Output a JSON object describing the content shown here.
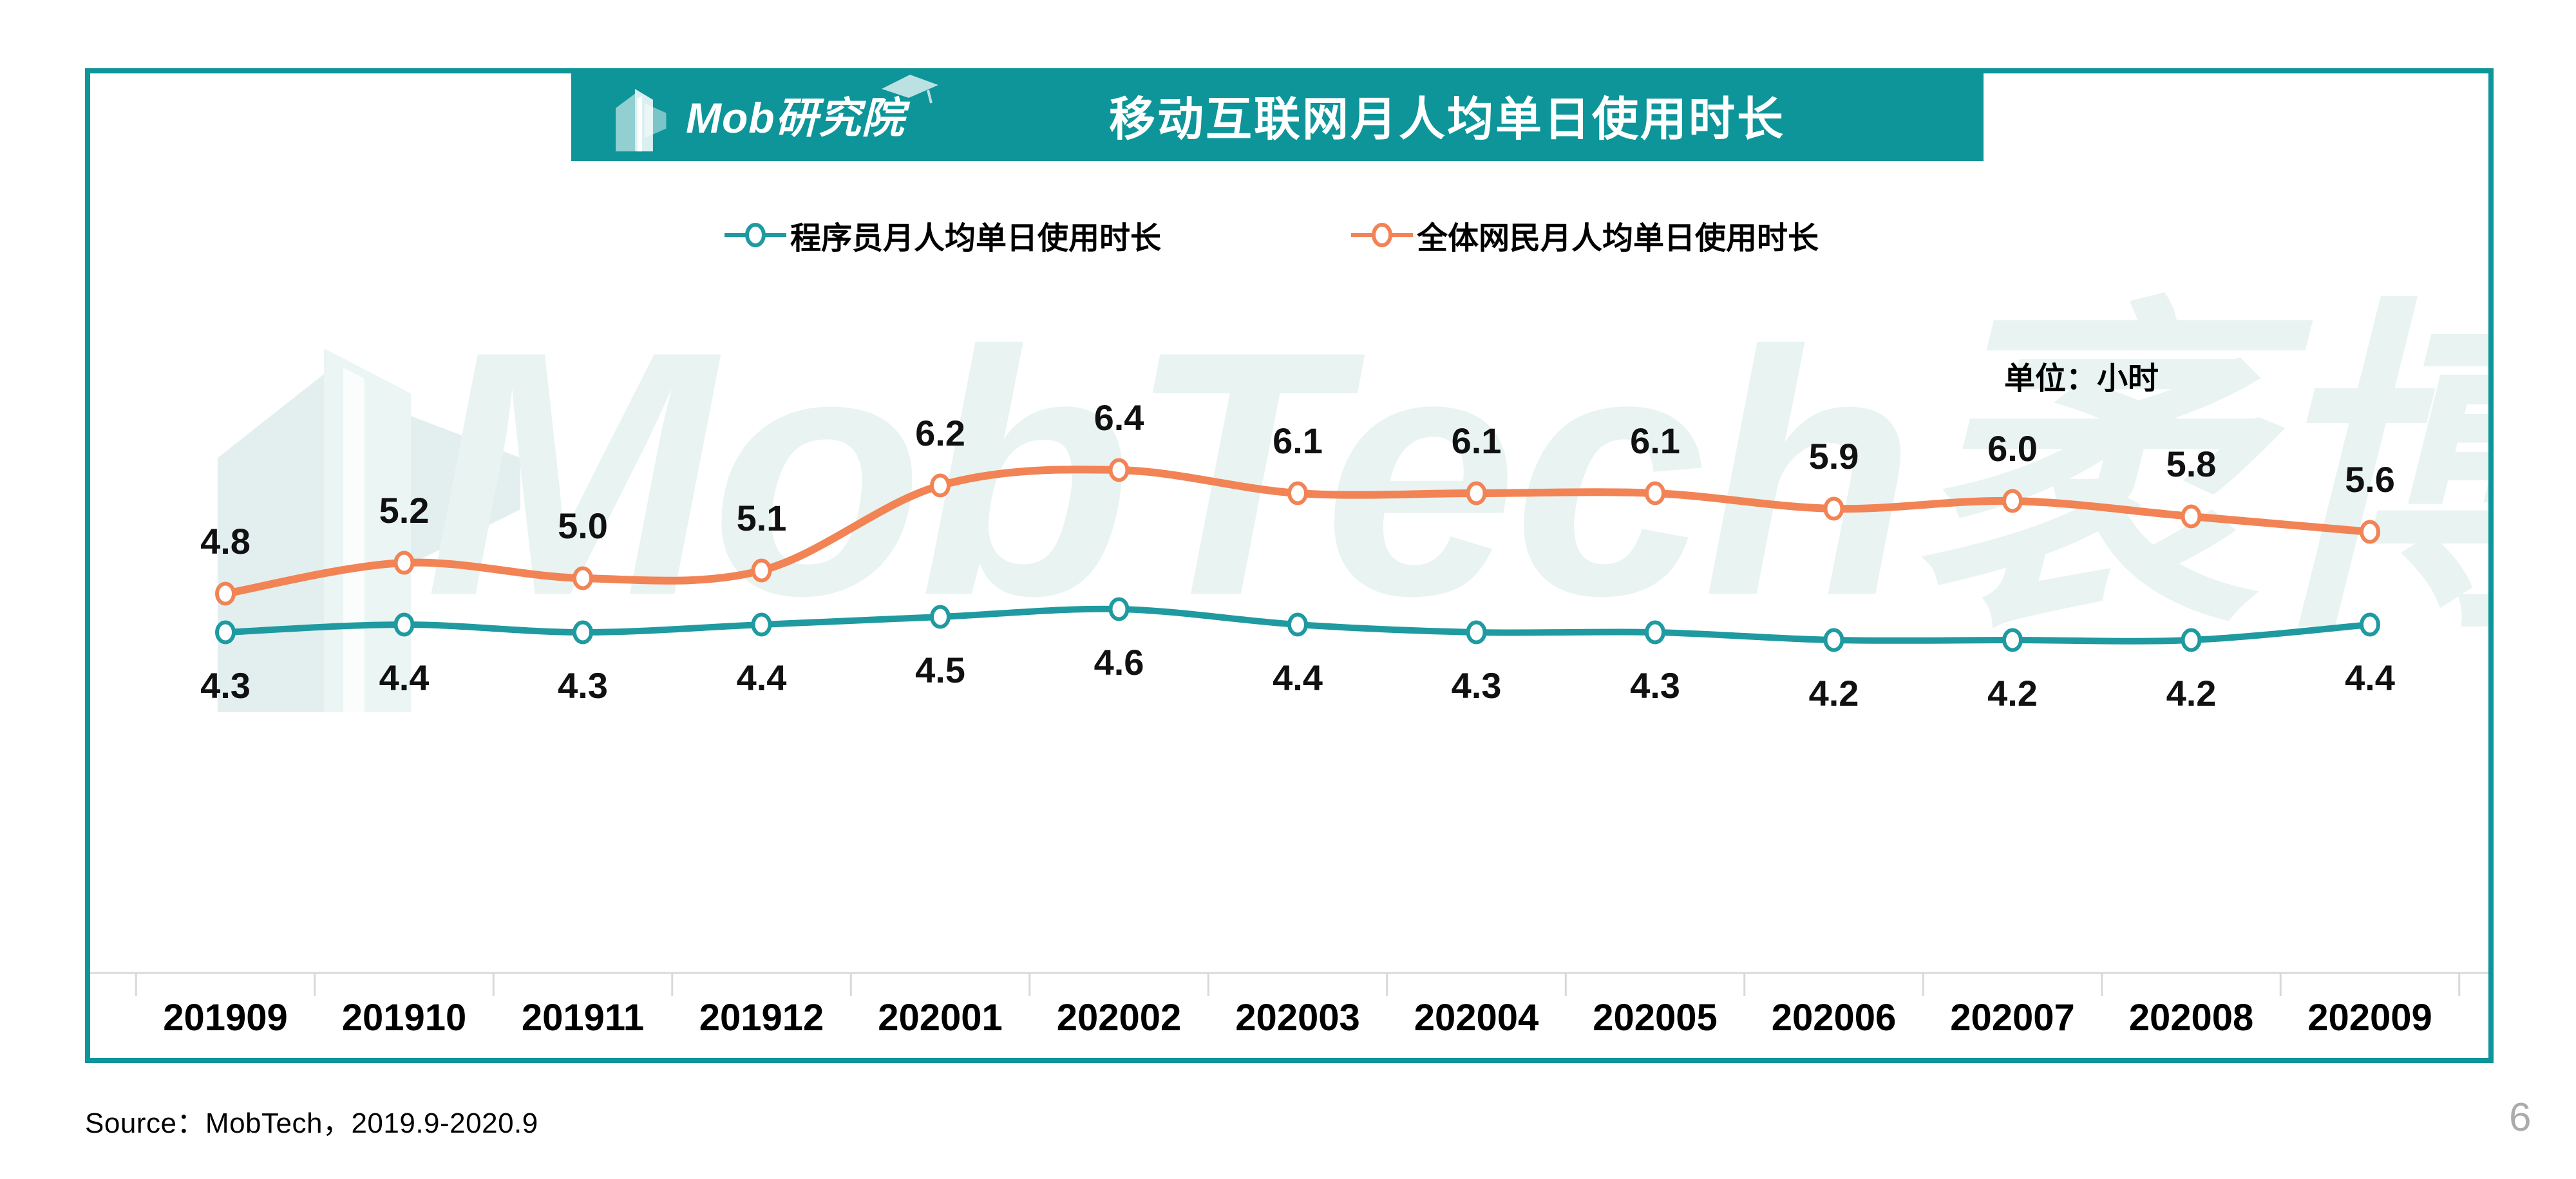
{
  "header": {
    "logo_text": "Mob研究院",
    "title": "移动互联网月人均单日使用时长"
  },
  "legend": {
    "items": [
      {
        "label": "程序员月人均单日使用时长",
        "color": "#1E9AA0"
      },
      {
        "label": "全体网民月人均单日使用时长",
        "color": "#F28355"
      }
    ],
    "unit_label": "单位：小时"
  },
  "watermark": {
    "text": "MobTech袤博"
  },
  "footer": {
    "source": "Source：MobTech，2019.9-2020.9",
    "page_number": "6"
  },
  "colors": {
    "brand_teal": "#0D9599",
    "series_programmer": "#1E9AA0",
    "series_all_netizens": "#F28355",
    "axis_gray": "#D9D9D9",
    "label_black": "#111111",
    "watermark_light": "#E8F3F2"
  },
  "chart_data": {
    "type": "line",
    "title": "移动互联网月人均单日使用时长",
    "unit": "小时",
    "categories": [
      "201909",
      "201910",
      "201911",
      "201912",
      "202001",
      "202002",
      "202003",
      "202004",
      "202005",
      "202006",
      "202007",
      "202008",
      "202009"
    ],
    "series": [
      {
        "name": "程序员月人均单日使用时长",
        "color": "#1E9AA0",
        "values": [
          4.3,
          4.4,
          4.3,
          4.4,
          4.5,
          4.6,
          4.4,
          4.3,
          4.3,
          4.2,
          4.2,
          4.2,
          4.4
        ],
        "label_position": "below"
      },
      {
        "name": "全体网民月人均单日使用时长",
        "color": "#F28355",
        "values": [
          4.8,
          5.2,
          5.0,
          5.1,
          6.2,
          6.4,
          6.1,
          6.1,
          6.1,
          5.9,
          6.0,
          5.8,
          5.6
        ],
        "label_position": "above"
      }
    ],
    "ylim": [
      3.8,
      7.0
    ],
    "grid": false,
    "legend_position": "top",
    "data_labels": true
  }
}
